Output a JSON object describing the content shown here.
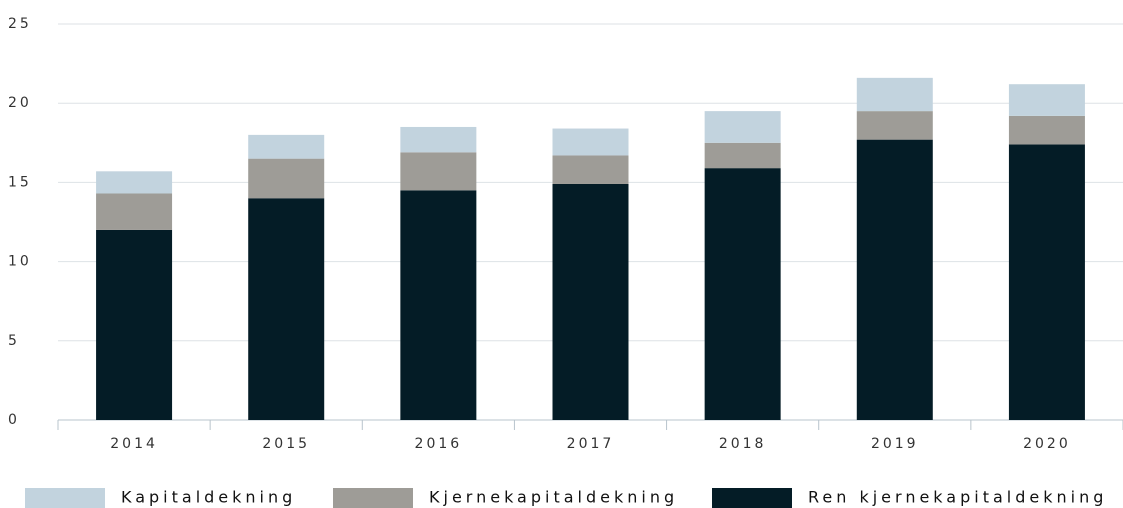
{
  "chart_data": {
    "type": "stacked_bar",
    "categories": [
      "2014",
      "2015",
      "2016",
      "2017",
      "2018",
      "2019",
      "2020"
    ],
    "series": [
      {
        "name": "Ren kjernekapitaldekning",
        "color": "#041c26",
        "values": [
          12.0,
          14.0,
          14.5,
          14.9,
          15.9,
          17.7,
          17.4
        ]
      },
      {
        "name": "Kjernekapitaldekning",
        "color": "#9e9c97",
        "values": [
          2.3,
          2.5,
          2.4,
          1.8,
          1.6,
          1.8,
          1.8
        ]
      },
      {
        "name": "Kapitaldekning",
        "color": "#c2d3de",
        "values": [
          1.4,
          1.5,
          1.6,
          1.7,
          2.0,
          2.1,
          2.0
        ]
      }
    ],
    "ylim": [
      0,
      25
    ],
    "yticks": [
      0,
      5,
      10,
      15,
      20,
      25
    ],
    "grid": true
  }
}
